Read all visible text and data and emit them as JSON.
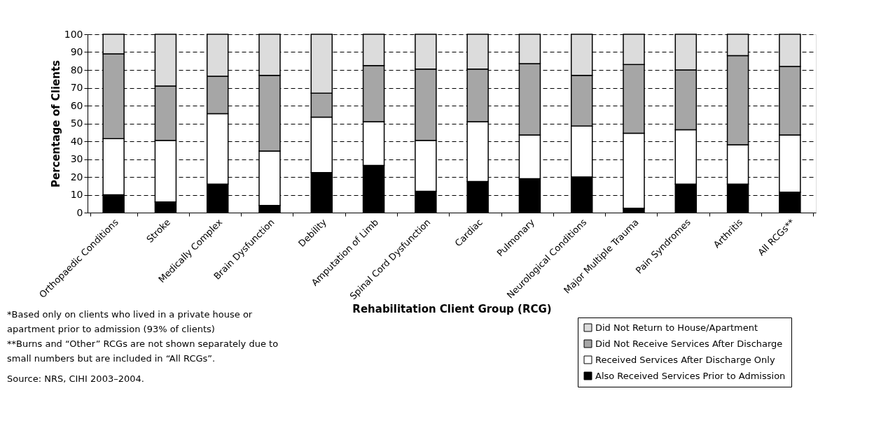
{
  "chart_data": {
    "type": "bar",
    "stacked": true,
    "xlabel": "Rehabilitation Client Group (RCG)",
    "ylabel": "Percentage of Clients",
    "categories": [
      "Orthopaedic Conditions",
      "Stroke",
      "Medically Complex",
      "Brain Dysfunction",
      "Debility",
      "Amputation of Limb",
      "Spinal Cord Dysfunction",
      "Cardiac",
      "Pulmonary",
      "Neurological Conditions",
      "Major Multiple Trauma",
      "Pain Syndromes",
      "Arthritis",
      "All RCGs**"
    ],
    "series": [
      {
        "name": "Also Received Services Prior to Admission",
        "color": "#000000",
        "values": [
          10,
          6,
          16,
          4,
          22.5,
          26.5,
          12,
          17.5,
          19,
          20,
          2.5,
          16,
          16,
          11.5
        ]
      },
      {
        "name": "Received Services After Discharge Only",
        "color": "#ffffff",
        "values": [
          31.5,
          34.5,
          39.5,
          30.5,
          31,
          24.5,
          28.5,
          33.5,
          24.5,
          28.5,
          42,
          30.5,
          22,
          32
        ]
      },
      {
        "name": "Did Not Receive Services After Discharge",
        "color": "#a6a6a6",
        "values": [
          47.5,
          30.5,
          21,
          42.5,
          13.5,
          31.5,
          40,
          29.5,
          40,
          28.5,
          38.5,
          33.5,
          50,
          38.5
        ]
      },
      {
        "name": "Did Not Return to House/Apartment",
        "color": "#dcdcdc",
        "values": [
          11,
          29,
          23.5,
          23,
          33,
          17.5,
          19.5,
          19.5,
          16.5,
          23,
          17,
          20,
          12,
          18
        ]
      }
    ],
    "ylim": [
      0,
      100
    ],
    "yticks": [
      0,
      10,
      20,
      30,
      40,
      50,
      60,
      70,
      80,
      90,
      100
    ],
    "grid": "y",
    "legend": "bottom right",
    "annotations": [
      "*Based only on clients who lived in a private house or apartment prior to admission (93% of clients)",
      "**Burns and “Other” RCGs are not shown separately due to small numbers but are included in “All RCGs”.",
      "Source: NRS, CIHI 2003–2004."
    ]
  }
}
